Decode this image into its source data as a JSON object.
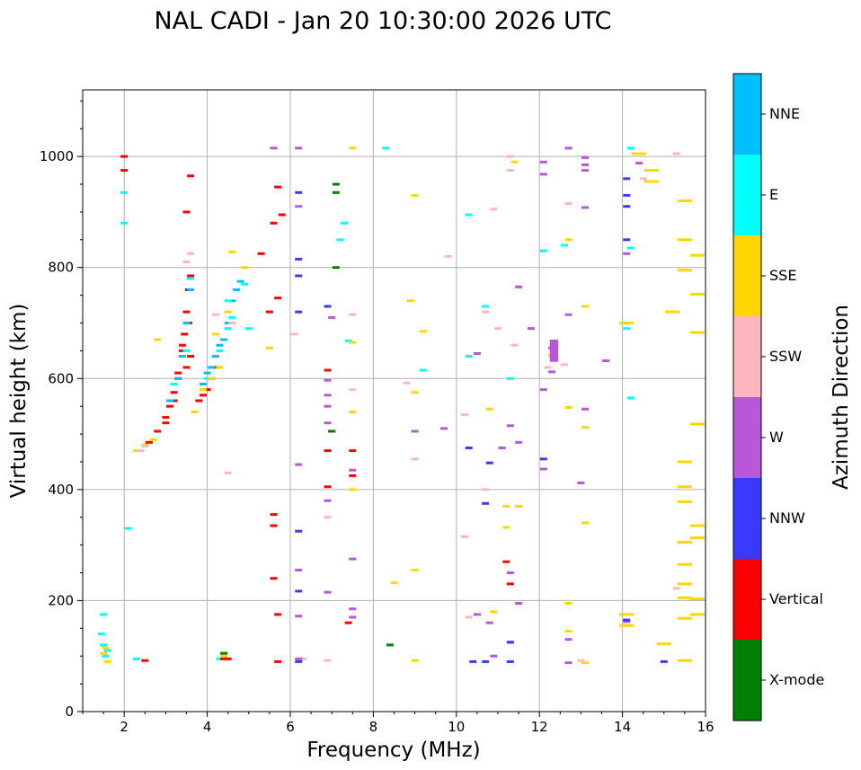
{
  "chart_data": {
    "type": "scatter",
    "title": "NAL CADI - Jan 20 10:30:00 2026 UTC",
    "xlabel": "Frequency (MHz)",
    "ylabel": "Virtual height (km)",
    "xlim": [
      1,
      16
    ],
    "ylim": [
      0,
      1120
    ],
    "x_ticks": [
      2,
      4,
      6,
      8,
      10,
      12,
      14,
      16
    ],
    "y_ticks": [
      0,
      200,
      400,
      600,
      800,
      1000
    ],
    "grid": true,
    "colorbar": {
      "label": "Azimuth Direction",
      "categories": [
        {
          "name": "X-mode",
          "color": "#008000"
        },
        {
          "name": "Vertical",
          "color": "#ff0000"
        },
        {
          "name": "NNW",
          "color": "#3a3aff"
        },
        {
          "name": "W",
          "color": "#b857d8"
        },
        {
          "name": "SSW",
          "color": "#ffb6c1"
        },
        {
          "name": "SSE",
          "color": "#ffd700"
        },
        {
          "name": "E",
          "color": "#00ffff"
        },
        {
          "name": "NNE",
          "color": "#00bfff"
        }
      ]
    },
    "traces": [
      {
        "category": "Vertical",
        "points": [
          [
            2.6,
            485
          ],
          [
            2.8,
            505
          ],
          [
            3.0,
            530
          ],
          [
            3.1,
            550
          ],
          [
            3.2,
            575
          ],
          [
            3.3,
            610
          ],
          [
            3.4,
            650
          ],
          [
            3.45,
            680
          ],
          [
            3.5,
            720
          ],
          [
            3.55,
            760
          ],
          [
            3.6,
            785
          ],
          [
            3.55,
            700
          ],
          [
            3.4,
            660
          ],
          [
            3.8,
            560
          ],
          [
            3.9,
            570
          ],
          [
            4.0,
            580
          ],
          [
            4.1,
            600
          ],
          [
            4.2,
            620
          ],
          [
            3.6,
            640
          ],
          [
            3.5,
            620
          ],
          [
            3.3,
            600
          ],
          [
            3.2,
            560
          ],
          [
            3.0,
            520
          ]
        ]
      },
      {
        "category": "NNE",
        "points": [
          [
            3.1,
            560
          ],
          [
            3.3,
            600
          ],
          [
            3.4,
            640
          ],
          [
            3.5,
            700
          ],
          [
            3.6,
            760
          ],
          [
            3.9,
            590
          ],
          [
            4.0,
            610
          ],
          [
            4.2,
            640
          ],
          [
            4.4,
            670
          ],
          [
            4.5,
            700
          ],
          [
            4.6,
            740
          ],
          [
            4.7,
            760
          ],
          [
            4.8,
            775
          ],
          [
            4.1,
            620
          ],
          [
            4.3,
            660
          ]
        ]
      },
      {
        "category": "E",
        "points": [
          [
            3.2,
            590
          ],
          [
            3.5,
            650
          ],
          [
            3.6,
            780
          ],
          [
            4.0,
            600
          ],
          [
            4.3,
            650
          ],
          [
            4.5,
            690
          ],
          [
            4.6,
            710
          ],
          [
            4.9,
            770
          ],
          [
            1.55,
            100
          ],
          [
            1.5,
            120
          ],
          [
            1.6,
            110
          ],
          [
            1.5,
            175
          ],
          [
            1.45,
            140
          ],
          [
            2.3,
            95
          ],
          [
            4.3,
            95
          ],
          [
            2.1,
            330
          ],
          [
            2.0,
            880
          ],
          [
            2.0,
            935
          ],
          [
            7.3,
            880
          ],
          [
            7.2,
            850
          ],
          [
            9.2,
            615
          ],
          [
            10.3,
            640
          ],
          [
            10.7,
            730
          ],
          [
            11.3,
            600
          ],
          [
            12.1,
            830
          ],
          [
            12.6,
            840
          ],
          [
            14.1,
            690
          ],
          [
            14.2,
            565
          ],
          [
            14.2,
            835
          ],
          [
            10.3,
            895
          ],
          [
            7.4,
            668
          ],
          [
            5.0,
            690
          ],
          [
            8.3,
            1015
          ],
          [
            14.2,
            1015
          ],
          [
            4.5,
            740
          ]
        ]
      },
      {
        "category": "SSE",
        "points": [
          [
            2.3,
            470
          ],
          [
            2.5,
            480
          ],
          [
            2.7,
            490
          ],
          [
            3.7,
            540
          ],
          [
            3.9,
            580
          ],
          [
            4.1,
            600
          ],
          [
            4.3,
            620
          ],
          [
            4.2,
            680
          ],
          [
            4.5,
            720
          ],
          [
            1.6,
            90
          ],
          [
            1.5,
            105
          ],
          [
            1.55,
            115
          ],
          [
            4.4,
            100
          ],
          [
            2.8,
            670
          ],
          [
            8.5,
            232
          ],
          [
            9.0,
            92
          ],
          [
            9.0,
            255
          ],
          [
            9.0,
            575
          ],
          [
            8.9,
            740
          ],
          [
            9.2,
            685
          ],
          [
            9.0,
            930
          ],
          [
            10.9,
            180
          ],
          [
            11.2,
            370
          ],
          [
            11.2,
            332
          ],
          [
            12.3,
            642
          ],
          [
            12.7,
            145
          ],
          [
            12.7,
            195
          ],
          [
            12.7,
            548
          ],
          [
            12.7,
            850
          ],
          [
            13.1,
            730
          ],
          [
            13.1,
            512
          ],
          [
            13.1,
            340
          ],
          [
            13.1,
            88
          ],
          [
            14.1,
            700
          ],
          [
            14.1,
            175
          ],
          [
            14.1,
            155
          ],
          [
            14.4,
            1005
          ],
          [
            14.7,
            975
          ],
          [
            14.7,
            955
          ],
          [
            15.5,
            920
          ],
          [
            15.5,
            850
          ],
          [
            15.5,
            795
          ],
          [
            15.2,
            720
          ],
          [
            15.5,
            450
          ],
          [
            15.5,
            405
          ],
          [
            15.5,
            378
          ],
          [
            15.5,
            305
          ],
          [
            15.5,
            265
          ],
          [
            15.5,
            230
          ],
          [
            15.5,
            205
          ],
          [
            15.5,
            168
          ],
          [
            15.0,
            122
          ],
          [
            15.5,
            92
          ],
          [
            15.8,
            822
          ],
          [
            15.8,
            752
          ],
          [
            15.8,
            683
          ],
          [
            15.8,
            518
          ],
          [
            15.8,
            335
          ],
          [
            15.8,
            313
          ],
          [
            15.8,
            203
          ],
          [
            15.8,
            175
          ],
          [
            7.5,
            665
          ],
          [
            7.5,
            540
          ],
          [
            7.5,
            400
          ],
          [
            7.5,
            1015
          ],
          [
            4.6,
            828
          ],
          [
            4.9,
            800
          ],
          [
            5.5,
            655
          ],
          [
            11.4,
            990
          ],
          [
            11.5,
            370
          ],
          [
            10.8,
            545
          ]
        ]
      },
      {
        "category": "SSW",
        "points": [
          [
            2.4,
            470
          ],
          [
            2.5,
            478
          ],
          [
            3.5,
            810
          ],
          [
            3.6,
            825
          ],
          [
            4.2,
            715
          ],
          [
            4.5,
            430
          ],
          [
            4.6,
            700
          ],
          [
            6.1,
            680
          ],
          [
            6.3,
            95
          ],
          [
            6.9,
            92
          ],
          [
            6.9,
            350
          ],
          [
            7.5,
            715
          ],
          [
            7.5,
            580
          ],
          [
            8.8,
            592
          ],
          [
            9.0,
            455
          ],
          [
            10.2,
            315
          ],
          [
            10.2,
            535
          ],
          [
            10.3,
            170
          ],
          [
            10.7,
            400
          ],
          [
            10.7,
            720
          ],
          [
            10.9,
            905
          ],
          [
            11.0,
            690
          ],
          [
            11.3,
            975
          ],
          [
            11.3,
            1000
          ],
          [
            11.4,
            660
          ],
          [
            12.2,
            620
          ],
          [
            12.6,
            625
          ],
          [
            12.7,
            915
          ],
          [
            13.0,
            92
          ],
          [
            14.5,
            960
          ],
          [
            15.3,
            1005
          ],
          [
            15.3,
            222
          ],
          [
            9.8,
            820
          ]
        ]
      },
      {
        "category": "W",
        "points": [
          [
            5.6,
            1015
          ],
          [
            6.2,
            1015
          ],
          [
            6.2,
            910
          ],
          [
            6.2,
            445
          ],
          [
            6.2,
            255
          ],
          [
            6.2,
            172
          ],
          [
            6.2,
            95
          ],
          [
            6.9,
            597
          ],
          [
            6.9,
            570
          ],
          [
            6.9,
            550
          ],
          [
            6.9,
            520
          ],
          [
            6.9,
            380
          ],
          [
            6.9,
            215
          ],
          [
            7.0,
            710
          ],
          [
            7.5,
            275
          ],
          [
            7.5,
            185
          ],
          [
            7.5,
            170
          ],
          [
            7.5,
            435
          ],
          [
            9.0,
            505
          ],
          [
            9.7,
            510
          ],
          [
            10.5,
            175
          ],
          [
            10.5,
            645
          ],
          [
            10.8,
            160
          ],
          [
            10.9,
            100
          ],
          [
            11.1,
            475
          ],
          [
            11.3,
            515
          ],
          [
            11.3,
            250
          ],
          [
            11.5,
            485
          ],
          [
            11.5,
            765
          ],
          [
            11.8,
            690
          ],
          [
            12.1,
            990
          ],
          [
            12.1,
            968
          ],
          [
            12.1,
            580
          ],
          [
            12.1,
            437
          ],
          [
            12.3,
            612
          ],
          [
            12.3,
            655
          ],
          [
            12.7,
            1015
          ],
          [
            12.7,
            715
          ],
          [
            12.7,
            130
          ],
          [
            12.7,
            88
          ],
          [
            13.1,
            998
          ],
          [
            13.1,
            985
          ],
          [
            13.1,
            975
          ],
          [
            13.1,
            908
          ],
          [
            13.1,
            545
          ],
          [
            13.6,
            632
          ],
          [
            13.0,
            412
          ],
          [
            14.1,
            162
          ],
          [
            14.1,
            825
          ],
          [
            14.4,
            988
          ],
          [
            11.3,
            125
          ],
          [
            11.5,
            195
          ]
        ]
      },
      {
        "category": "NNW",
        "points": [
          [
            6.2,
            935
          ],
          [
            6.2,
            815
          ],
          [
            6.2,
            785
          ],
          [
            6.2,
            720
          ],
          [
            6.2,
            325
          ],
          [
            6.2,
            217
          ],
          [
            6.2,
            90
          ],
          [
            10.3,
            475
          ],
          [
            10.4,
            90
          ],
          [
            10.7,
            375
          ],
          [
            10.7,
            90
          ],
          [
            10.8,
            448
          ],
          [
            11.3,
            90
          ],
          [
            11.3,
            125
          ],
          [
            12.1,
            455
          ],
          [
            14.1,
            960
          ],
          [
            14.1,
            930
          ],
          [
            14.1,
            910
          ],
          [
            14.1,
            850
          ],
          [
            14.1,
            165
          ],
          [
            15.0,
            90
          ],
          [
            6.9,
            730
          ]
        ]
      },
      {
        "category": "Vertical",
        "points": [
          [
            3.6,
            965
          ],
          [
            3.5,
            900
          ],
          [
            5.6,
            355
          ],
          [
            5.6,
            335
          ],
          [
            5.6,
            240
          ],
          [
            5.7,
            945
          ],
          [
            5.7,
            745
          ],
          [
            5.7,
            175
          ],
          [
            5.7,
            90
          ],
          [
            5.8,
            895
          ],
          [
            5.6,
            880
          ],
          [
            6.9,
            615
          ],
          [
            6.9,
            470
          ],
          [
            6.9,
            405
          ],
          [
            7.0,
            505
          ],
          [
            7.5,
            470
          ],
          [
            7.4,
            160
          ],
          [
            7.5,
            425
          ],
          [
            11.2,
            270
          ],
          [
            11.3,
            230
          ],
          [
            2.0,
            975
          ],
          [
            2.0,
            1000
          ],
          [
            4.4,
            95
          ],
          [
            4.5,
            95
          ],
          [
            5.3,
            825
          ],
          [
            5.5,
            720
          ],
          [
            2.5,
            92
          ]
        ]
      },
      {
        "category": "X-mode",
        "points": [
          [
            7.1,
            950
          ],
          [
            7.1,
            935
          ],
          [
            7.1,
            800
          ],
          [
            8.4,
            120
          ],
          [
            7.0,
            505
          ],
          [
            4.4,
            105
          ]
        ]
      }
    ],
    "block": {
      "category": "W",
      "x": [
        12.25,
        12.45
      ],
      "y": [
        630,
        670
      ]
    }
  }
}
